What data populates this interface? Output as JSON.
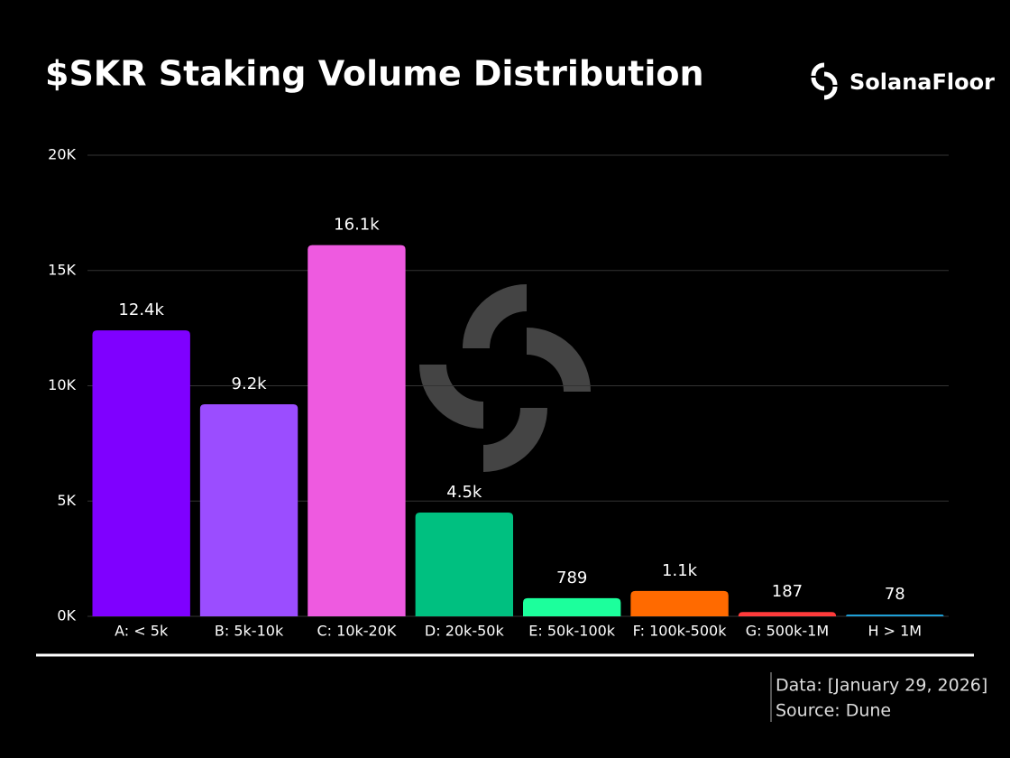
{
  "chart_data": {
    "type": "bar",
    "title": "$SKR Staking Volume Distribution",
    "categories": [
      "A: < 5k",
      "B: 5k-10k",
      "C: 10k-20K",
      "D: 20k-50k",
      "E: 50k-100k",
      "F: 100k-500k",
      "G: 500k-1M",
      "H > 1M"
    ],
    "values": [
      12400,
      9200,
      16100,
      4500,
      789,
      1100,
      187,
      78
    ],
    "value_labels": [
      "12.4k",
      "9.2k",
      "16.1k",
      "4.5k",
      "789",
      "1.1k",
      "187",
      "78"
    ],
    "colors": [
      "#7f00ff",
      "#9b4dff",
      "#ee5ae0",
      "#00c080",
      "#1cff9c",
      "#ff6a00",
      "#ff3b3b",
      "#1e9fd6"
    ],
    "ylim": [
      0,
      20000
    ],
    "yticks": [
      {
        "value": 0,
        "label": "0K"
      },
      {
        "value": 5000,
        "label": "5K"
      },
      {
        "value": 10000,
        "label": "10K"
      },
      {
        "value": 15000,
        "label": "15K"
      },
      {
        "value": 20000,
        "label": "20K"
      }
    ],
    "grid": true
  },
  "brand": "SolanaFloor",
  "footer": [
    "Data: [January 29, 2026]",
    "Source: Dune"
  ]
}
